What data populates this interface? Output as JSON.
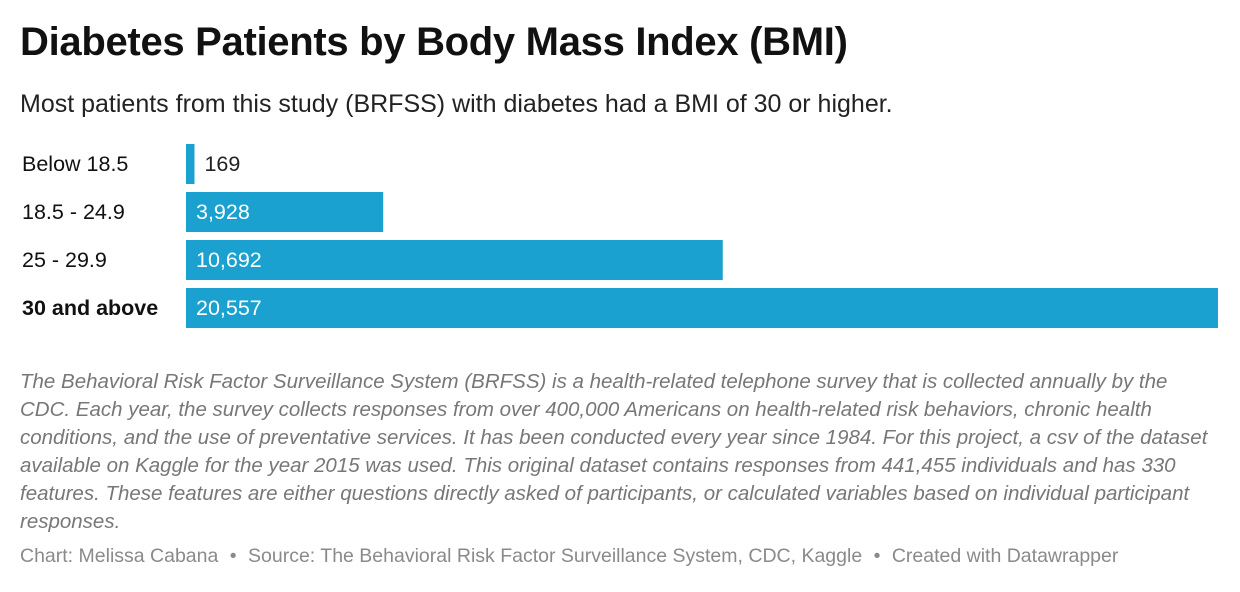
{
  "title": "Diabetes Patients by Body Mass Index (BMI)",
  "subtitle": "Most patients from this study (BRFSS) with diabetes had a BMI of 30 or higher.",
  "notes": "The Behavioral Risk Factor Surveillance System (BRFSS) is a health-related telephone survey that is collected annually by the CDC. Each year, the survey collects responses from over 400,000 Americans on health-related risk behaviors, chronic health conditions, and the use of preventative services. It has been conducted every year since 1984. For this project, a csv of the dataset available on Kaggle for the year 2015 was used. This original dataset contains responses from 441,455 individuals and has 330 features. These features are either questions directly asked of participants, or calculated variables based on individual participant responses.",
  "footer": {
    "chart_credit": "Chart: Melissa Cabana",
    "source": "Source: The Behavioral Risk Factor Surveillance System, CDC, Kaggle",
    "created_with": "Created with Datawrapper"
  },
  "colors": {
    "bar": "#1aa1cf",
    "label_inside": "#ffffff",
    "label_outside": "#222222"
  },
  "chart_data": {
    "type": "bar",
    "orientation": "horizontal",
    "categories": [
      "Below 18.5",
      "18.5 - 24.9",
      "25 - 29.9",
      "30 and above"
    ],
    "values": [
      169,
      3928,
      10692,
      20557
    ],
    "value_labels": [
      "169",
      "3,928",
      "10,692",
      "20,557"
    ],
    "highlighted_category": "30 and above",
    "xlim": [
      0,
      20557
    ],
    "title": "Diabetes Patients by Body Mass Index (BMI)",
    "xlabel": "",
    "ylabel": "",
    "grid": false,
    "legend": "none"
  }
}
